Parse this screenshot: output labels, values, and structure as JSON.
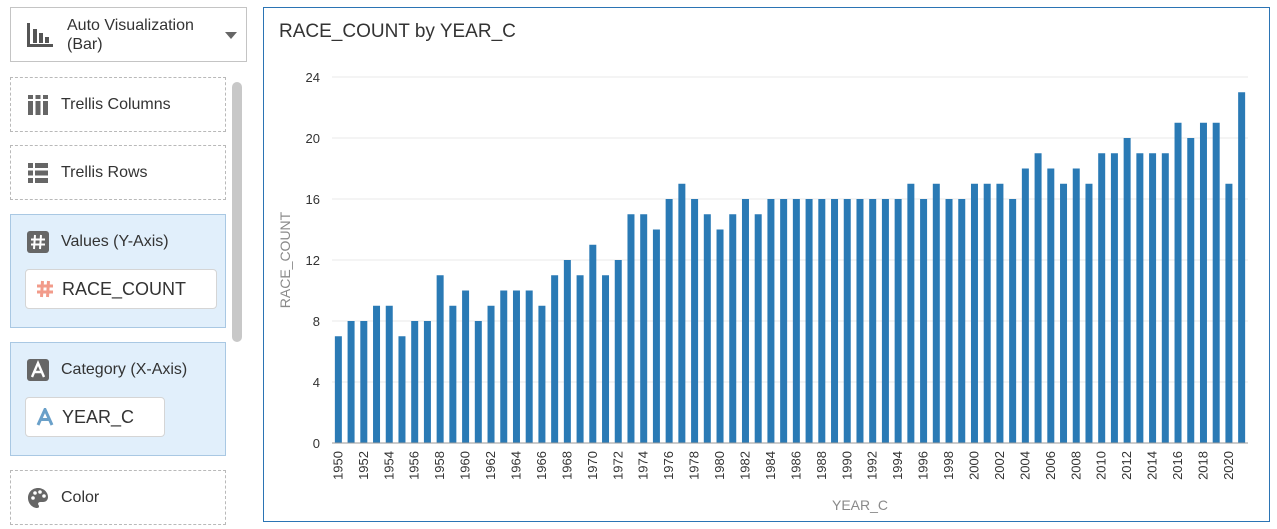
{
  "sidebar": {
    "viz_select": {
      "label": "Auto Visualization (Bar)",
      "icon": "bar-chart-icon"
    },
    "trellis_columns": {
      "label": "Trellis Columns",
      "icon": "trellis-columns-icon"
    },
    "trellis_rows": {
      "label": "Trellis Rows",
      "icon": "trellis-rows-icon"
    },
    "values": {
      "label": "Values (Y-Axis)",
      "icon": "hash-icon",
      "chip": "RACE_COUNT",
      "chip_icon": "hash-icon"
    },
    "category": {
      "label": "Category (X-Axis)",
      "icon": "text-attribute-icon",
      "chip": "YEAR_C",
      "chip_icon": "text-attribute-icon"
    },
    "color": {
      "label": "Color",
      "icon": "palette-icon"
    }
  },
  "colors": {
    "bar": "#2a7ab5",
    "panel_border": "#2b74b4",
    "hash_chip": "#f29b8a",
    "attr_chip": "#6aa0c9"
  },
  "chart_data": {
    "type": "bar",
    "title": "RACE_COUNT by YEAR_C",
    "xlabel": "YEAR_C",
    "ylabel": "RACE_COUNT",
    "ylim": [
      0,
      24
    ],
    "yticks": [
      0,
      4,
      8,
      12,
      16,
      20,
      24
    ],
    "grid": true,
    "categories": [
      "1950",
      "1951",
      "1952",
      "1953",
      "1954",
      "1955",
      "1956",
      "1957",
      "1958",
      "1959",
      "1960",
      "1961",
      "1962",
      "1963",
      "1964",
      "1965",
      "1966",
      "1967",
      "1968",
      "1969",
      "1970",
      "1971",
      "1972",
      "1973",
      "1974",
      "1975",
      "1976",
      "1977",
      "1978",
      "1979",
      "1980",
      "1981",
      "1982",
      "1983",
      "1984",
      "1985",
      "1986",
      "1987",
      "1988",
      "1989",
      "1990",
      "1991",
      "1992",
      "1993",
      "1994",
      "1995",
      "1996",
      "1997",
      "1998",
      "1999",
      "2000",
      "2001",
      "2002",
      "2003",
      "2004",
      "2005",
      "2006",
      "2007",
      "2008",
      "2009",
      "2010",
      "2011",
      "2012",
      "2013",
      "2014",
      "2015",
      "2016",
      "2017",
      "2018",
      "2019",
      "2020",
      "2021"
    ],
    "values": [
      7,
      8,
      8,
      9,
      9,
      7,
      8,
      8,
      11,
      9,
      10,
      8,
      9,
      10,
      10,
      10,
      9,
      11,
      12,
      11,
      13,
      11,
      12,
      15,
      15,
      14,
      16,
      17,
      16,
      15,
      14,
      15,
      16,
      15,
      16,
      16,
      16,
      16,
      16,
      16,
      16,
      16,
      16,
      16,
      16,
      17,
      16,
      17,
      16,
      16,
      17,
      17,
      17,
      16,
      18,
      19,
      18,
      17,
      18,
      17,
      19,
      19,
      20,
      19,
      19,
      19,
      21,
      20,
      21,
      21,
      17,
      23
    ],
    "xtick_labels_shown": [
      "1950",
      "1952",
      "1954",
      "1956",
      "1958",
      "1960",
      "1962",
      "1964",
      "1966",
      "1968",
      "1970",
      "1972",
      "1974",
      "1976",
      "1978",
      "1980",
      "1982",
      "1984",
      "1986",
      "1988",
      "1990",
      "1992",
      "1994",
      "1996",
      "1998",
      "2000",
      "2002",
      "2004",
      "2006",
      "2008",
      "2010",
      "2012",
      "2014",
      "2016",
      "2018",
      "2020"
    ]
  }
}
